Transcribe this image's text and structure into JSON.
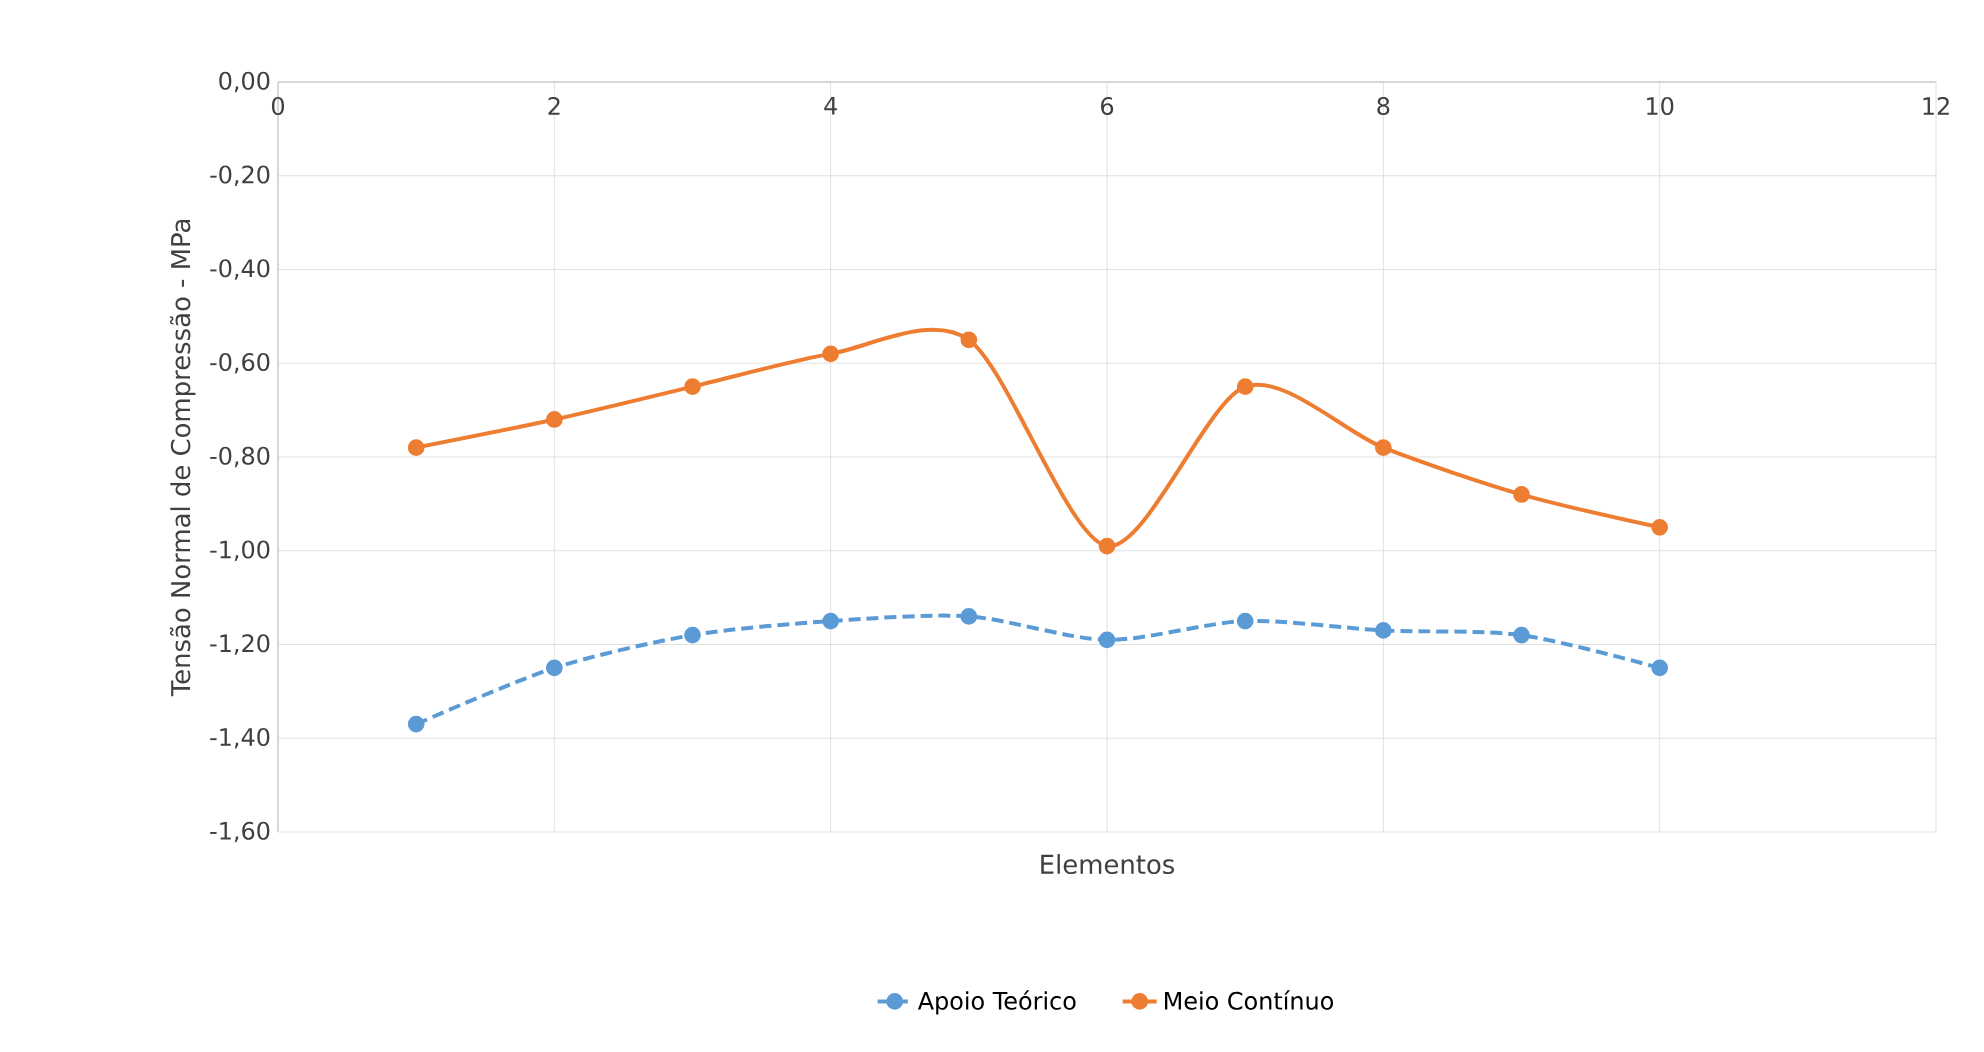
{
  "chart_data": {
    "type": "line",
    "xlabel": "Elementos",
    "ylabel": "Tensão Normal de Compressão - MPa",
    "x": [
      1,
      2,
      3,
      4,
      5,
      6,
      7,
      8,
      9,
      10
    ],
    "series": [
      {
        "name": "Apoio Teórico",
        "color": "#5b9bd5",
        "line_style": "dashed",
        "values": [
          -1.37,
          -1.25,
          -1.18,
          -1.15,
          -1.14,
          -1.19,
          -1.15,
          -1.17,
          -1.18,
          -1.25
        ]
      },
      {
        "name": "Meio Contínuo",
        "color": "#ed7d31",
        "line_style": "solid",
        "values": [
          -0.78,
          -0.72,
          -0.65,
          -0.58,
          -0.55,
          -0.99,
          -0.65,
          -0.78,
          -0.88,
          -0.95
        ]
      }
    ],
    "marker": "circle",
    "grid": true,
    "legend": "bottom",
    "xlim": [
      0,
      12
    ],
    "xticks": [
      0,
      2,
      4,
      6,
      8,
      10,
      12
    ],
    "ylim": [
      -1.6,
      0
    ],
    "yticks": [
      {
        "value": 0,
        "label": "0,00"
      },
      {
        "value": -0.2,
        "label": "-0,20"
      },
      {
        "value": -0.4,
        "label": "-0,40"
      },
      {
        "value": -0.6,
        "label": "-0,60"
      },
      {
        "value": -0.8,
        "label": "-0,80"
      },
      {
        "value": -1.0,
        "label": "-1,00"
      },
      {
        "value": -1.2,
        "label": "-1,20"
      },
      {
        "value": -1.4,
        "label": "-1,40"
      },
      {
        "value": -1.6,
        "label": "-1,60"
      }
    ]
  }
}
